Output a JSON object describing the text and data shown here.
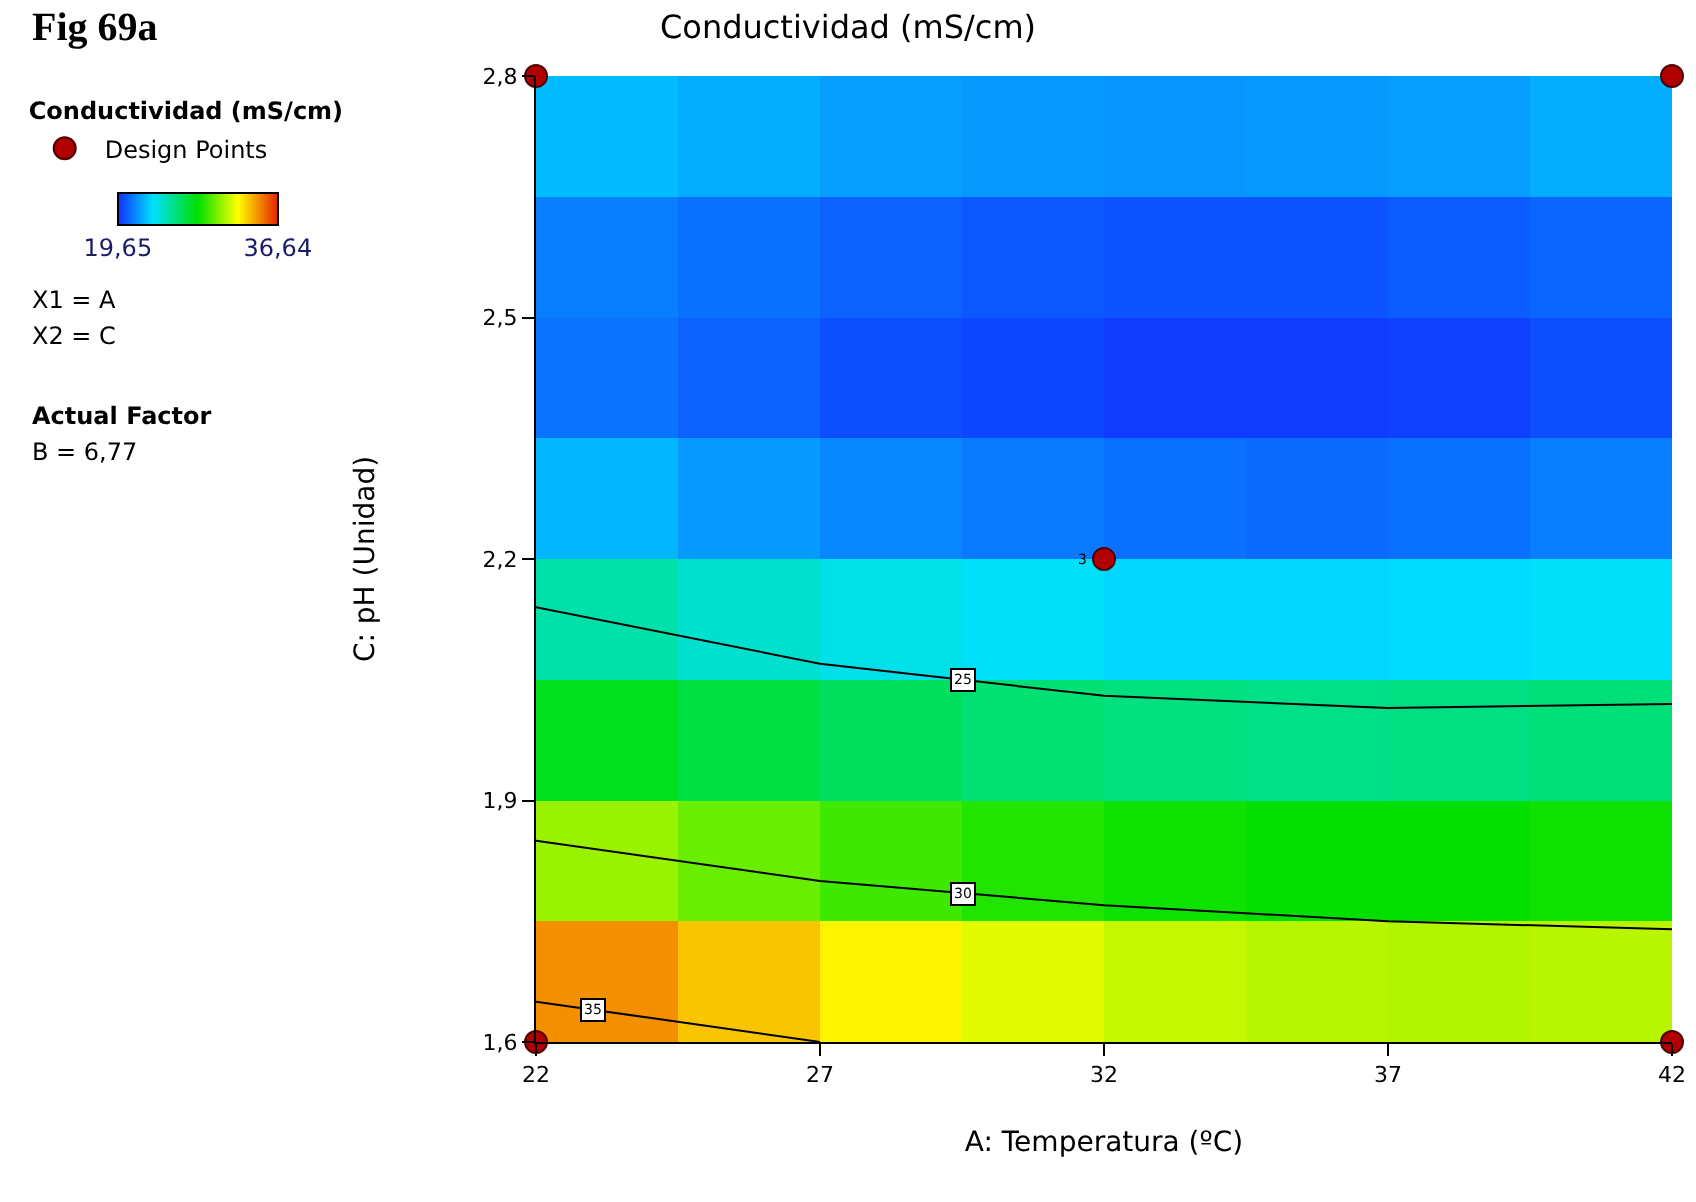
{
  "chart_data": [
    {
      "type": "heatmap",
      "title": "Conductividad (mS/cm)",
      "annotations": [
        "Fig 69a",
        "X1 = A",
        "X2 = C",
        "Actual Factor",
        "B = 6,77"
      ],
      "categories": [
        null,
        null,
        null,
        null,
        null,
        null,
        null,
        null
      ],
      "y_categories": [
        null,
        null,
        null,
        null,
        null,
        null,
        null,
        null
      ],
      "cells": [
        [
          22.6,
          22.3,
          22.0,
          21.9,
          21.8,
          21.9,
          22.0,
          22.3
        ],
        [
          21.3,
          21.0,
          20.7,
          20.5,
          20.4,
          20.4,
          20.6,
          20.8
        ],
        [
          21.1,
          20.7,
          20.3,
          20.1,
          19.9,
          19.9,
          20.0,
          20.3
        ],
        [
          22.5,
          21.9,
          21.5,
          21.2,
          21.0,
          20.9,
          21.0,
          21.3
        ],
        [
          25.0,
          24.3,
          23.8,
          23.5,
          23.2,
          23.2,
          23.3,
          23.5
        ],
        [
          27.6,
          26.9,
          26.4,
          26.0,
          25.8,
          25.6,
          25.7,
          25.9
        ],
        [
          30.7,
          29.9,
          29.2,
          28.7,
          28.4,
          28.2,
          28.2,
          28.4
        ],
        [
          34.5,
          33.5,
          32.6,
          31.9,
          31.4,
          31.2,
          31.1,
          31.2
        ]
      ],
      "clim": [
        19.65,
        36.64
      ],
      "cticks": [
        {
          "value": 19.65,
          "label": "19,65"
        },
        {
          "value": 36.64,
          "label": "36,64"
        }
      ]
    },
    {
      "type": "scatter",
      "xlabel": "A: Temperatura (ºC)",
      "ylabel": "C: pH (Unidad)",
      "legend_title": "Conductividad (mS/cm)",
      "legend": "left",
      "annotations": [
        {
          "text": "3",
          "x": 32,
          "y": 2.2
        }
      ],
      "xlim": [
        22,
        42
      ],
      "xticks": [
        22,
        27,
        32,
        37,
        42
      ],
      "ylim": [
        1.6,
        2.8
      ],
      "yticks": [
        {
          "value": 1.6,
          "label": "1,6"
        },
        {
          "value": 1.9,
          "label": "1,9"
        },
        {
          "value": 2.2,
          "label": "2,2"
        },
        {
          "value": 2.5,
          "label": "2,5"
        },
        {
          "value": 2.8,
          "label": "2,8"
        }
      ],
      "series": [
        {
          "type": "line",
          "name": "25",
          "color": "#000000",
          "x": [
            22,
            27,
            32,
            37,
            42
          ],
          "values": [
            2.14,
            2.07,
            2.03,
            2.015,
            2.02
          ]
        },
        {
          "type": "line",
          "name": "30",
          "color": "#000000",
          "x": [
            22,
            27,
            32,
            37,
            42
          ],
          "values": [
            1.85,
            1.8,
            1.77,
            1.75,
            1.74
          ]
        },
        {
          "type": "line",
          "name": "35",
          "color": "#000000",
          "x": [
            22,
            24,
            27
          ],
          "values": [
            1.65,
            1.63,
            1.6
          ]
        },
        {
          "type": "scatter",
          "name": "Design Points",
          "color": "#b00000",
          "marker": "circle",
          "x": [
            22,
            22,
            32,
            42,
            42
          ],
          "values": [
            1.6,
            2.8,
            2.2,
            1.6,
            2.8
          ]
        }
      ]
    }
  ]
}
